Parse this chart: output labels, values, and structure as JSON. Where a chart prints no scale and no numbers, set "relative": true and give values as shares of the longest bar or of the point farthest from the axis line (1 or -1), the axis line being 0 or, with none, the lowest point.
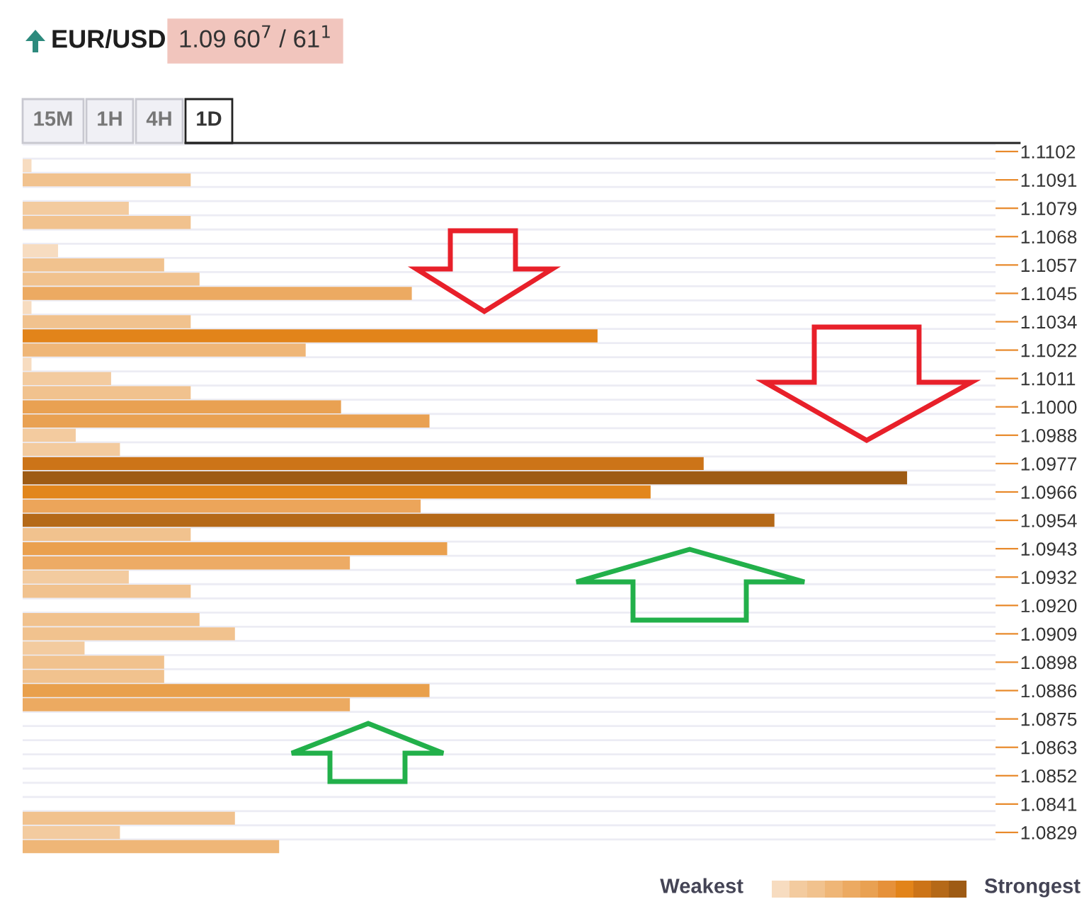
{
  "chart_data": {
    "type": "bar",
    "orientation": "horizontal",
    "relative": true,
    "title": "EUR/USD",
    "subtitle": "1.09 60$^{7}$ / 61$^{1}$",
    "categories": [
      "1.1102",
      null,
      "1.1091",
      null,
      "1.1079",
      null,
      "1.1068",
      null,
      "1.1057",
      null,
      "1.1045",
      null,
      "1.1034",
      null,
      "1.1022",
      null,
      "1.1011",
      null,
      "1.1000",
      null,
      "1.0988",
      null,
      "1.0977",
      null,
      "1.0966",
      null,
      "1.0954",
      null,
      "1.0943",
      null,
      "1.0932",
      null,
      "1.0920",
      null,
      "1.0909",
      null,
      "1.0898",
      null,
      "1.0886",
      null,
      "1.0875",
      null,
      "1.0863",
      null,
      "1.0852",
      null,
      "1.0841",
      null,
      "1.0829",
      null
    ],
    "values": [
      0,
      0.01,
      0.19,
      0,
      0.12,
      0.19,
      0,
      0.04,
      0.16,
      0.2,
      0.44,
      0.01,
      0.19,
      0.65,
      0.32,
      0.01,
      0.1,
      0.19,
      0.36,
      0.46,
      0.06,
      0.11,
      0.77,
      1,
      0.71,
      0.45,
      0.85,
      0.19,
      0.48,
      0.37,
      0.12,
      0.19,
      0,
      0.2,
      0.24,
      0.07,
      0.16,
      0.16,
      0.46,
      0.37,
      0,
      0,
      0,
      0,
      0,
      0,
      0,
      0.24,
      0.11,
      0.29
    ],
    "colors": [
      "#f7dcc0",
      "#f7dcc0",
      "#f1c28e",
      "#f7dcc0",
      "#f3cb9f",
      "#f1c28e",
      "#f7dcc0",
      "#f7dcc0",
      "#f1c28e",
      "#f1c28e",
      "#ecaa62",
      "#f7dcc0",
      "#f1c28e",
      "#e2841a",
      "#efb677",
      "#f7dcc0",
      "#f3cb9f",
      "#f1c28e",
      "#e9a152",
      "#e9a152",
      "#f3cb9f",
      "#f3cb9f",
      "#cc7418",
      "#9e5b14",
      "#e2861c",
      "#eca55a",
      "#b56918",
      "#f1c28e",
      "#eaa04e",
      "#edab65",
      "#f3cb9f",
      "#f1c28e",
      "#f7dcc0",
      "#f1c28e",
      "#f1c28e",
      "#f3cb9f",
      "#f1c28e",
      "#f1c28e",
      "#e9a04c",
      "#ecaa61",
      "#f7dcc0",
      "#f7dcc0",
      "#f7dcc0",
      "#f7dcc0",
      "#f7dcc0",
      "#f7dcc0",
      "#f7dcc0",
      "#f1c28e",
      "#f3cb9f",
      "#efb677"
    ],
    "grid": "y",
    "annotations": [
      "15M",
      "1H",
      "4H",
      "1D",
      "Weakest",
      "Strongest"
    ]
  }
}
